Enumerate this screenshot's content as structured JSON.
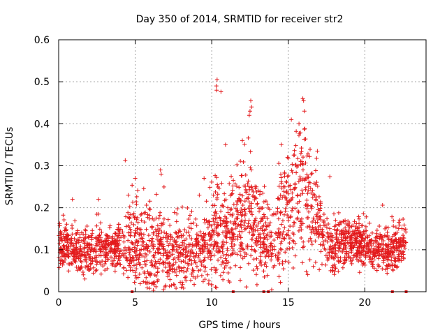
{
  "chart_data": {
    "type": "scatter",
    "title": "Day 350 of 2014, SRMTID for receiver str2",
    "xlabel": "GPS time / hours",
    "ylabel": "SRMTID / TECUs",
    "xlim": [
      0,
      24
    ],
    "ylim": [
      0,
      0.6
    ],
    "xticks": [
      0,
      5,
      10,
      15,
      20
    ],
    "xtick_labels": [
      "0",
      "5",
      "10",
      "15",
      "20"
    ],
    "yticks": [
      0,
      0.1,
      0.2,
      0.3,
      0.4,
      0.5,
      0.6
    ],
    "ytick_labels": [
      "0",
      "0.1",
      "0.2",
      "0.3",
      "0.4",
      "0.5",
      "0.6"
    ],
    "grid": true,
    "marker": "+",
    "series": [
      {
        "name": "str2",
        "color": "#e31a1c",
        "baseline_profile": {
          "hours": [
            0,
            1,
            2,
            3,
            4,
            4.5,
            5,
            6,
            7,
            8,
            9,
            9.5,
            10,
            10.3,
            11,
            12,
            12.5,
            13,
            13.5,
            14,
            14.5,
            15,
            15.5,
            16,
            16.5,
            17,
            17.5,
            18,
            19,
            20,
            21,
            22,
            22.7
          ],
          "median_tecu": [
            0.11,
            0.1,
            0.09,
            0.1,
            0.11,
            0.1,
            0.12,
            0.1,
            0.1,
            0.09,
            0.09,
            0.1,
            0.12,
            0.15,
            0.13,
            0.17,
            0.19,
            0.16,
            0.12,
            0.12,
            0.16,
            0.2,
            0.22,
            0.24,
            0.2,
            0.16,
            0.13,
            0.11,
            0.12,
            0.11,
            0.1,
            0.1,
            0.12
          ],
          "spread_tecu": [
            0.03,
            0.03,
            0.03,
            0.03,
            0.03,
            0.05,
            0.06,
            0.06,
            0.05,
            0.05,
            0.04,
            0.05,
            0.07,
            0.09,
            0.07,
            0.07,
            0.08,
            0.07,
            0.05,
            0.05,
            0.08,
            0.08,
            0.09,
            0.09,
            0.07,
            0.05,
            0.04,
            0.04,
            0.03,
            0.03,
            0.03,
            0.03,
            0.03
          ]
        },
        "notable_points": [
          {
            "x": 10.35,
            "y": 0.505
          },
          {
            "x": 10.3,
            "y": 0.49
          },
          {
            "x": 10.32,
            "y": 0.48
          },
          {
            "x": 12.55,
            "y": 0.455
          },
          {
            "x": 12.6,
            "y": 0.44
          },
          {
            "x": 12.5,
            "y": 0.43
          },
          {
            "x": 12.45,
            "y": 0.42
          },
          {
            "x": 15.95,
            "y": 0.46
          },
          {
            "x": 16.0,
            "y": 0.455
          },
          {
            "x": 16.05,
            "y": 0.43
          },
          {
            "x": 15.7,
            "y": 0.4
          },
          {
            "x": 15.2,
            "y": 0.41
          },
          {
            "x": 4.35,
            "y": 0.313
          },
          {
            "x": 6.65,
            "y": 0.29
          },
          {
            "x": 6.7,
            "y": 0.28
          },
          {
            "x": 10.9,
            "y": 0.35
          },
          {
            "x": 12.0,
            "y": 0.36
          },
          {
            "x": 16.9,
            "y": 0.335
          },
          {
            "x": 0.9,
            "y": 0.22
          },
          {
            "x": 2.6,
            "y": 0.22
          },
          {
            "x": 5.0,
            "y": 0.27
          },
          {
            "x": 9.5,
            "y": 0.27
          }
        ],
        "zero_points_hours": [
          4.8,
          11.4,
          13.4,
          13.7,
          21.8,
          22.7
        ]
      }
    ]
  }
}
